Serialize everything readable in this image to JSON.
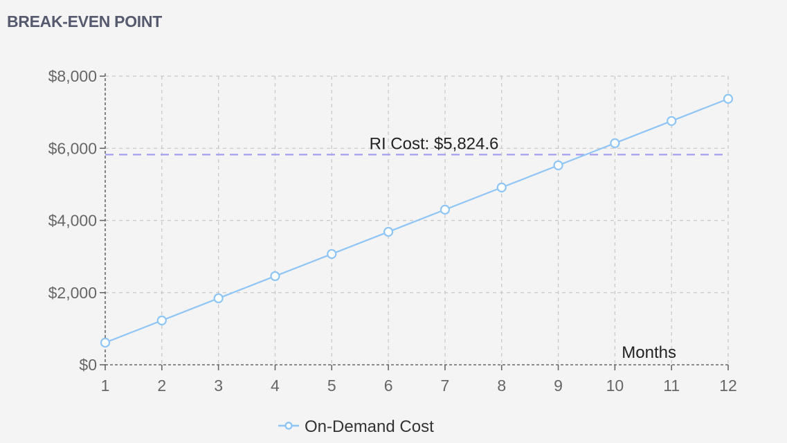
{
  "card": {
    "title": "BREAK-EVEN POINT"
  },
  "colors": {
    "series": "#8ec5f5",
    "reference_line": "#a39ef0",
    "grid": "#c8c8c8",
    "axis": "#666666"
  },
  "chart_data": {
    "type": "line",
    "title": "",
    "xlabel": "Months",
    "ylabel": "",
    "x": [
      1,
      2,
      3,
      4,
      5,
      6,
      7,
      8,
      9,
      10,
      11,
      12
    ],
    "series": [
      {
        "name": "On-Demand Cost",
        "values": [
          614,
          1228,
          1843,
          2457,
          3071,
          3685,
          4300,
          4914,
          5528,
          6142,
          6757,
          7371
        ]
      }
    ],
    "reference_line": {
      "value": 5824.6,
      "label": "RI Cost: $5,824.6"
    },
    "ylim": [
      0,
      8000
    ],
    "y_ticks": [
      0,
      2000,
      4000,
      6000,
      8000
    ],
    "y_tick_labels": [
      "$0",
      "$2,000",
      "$4,000",
      "$6,000",
      "$8,000"
    ],
    "grid": true,
    "legend_position": "bottom-center"
  }
}
